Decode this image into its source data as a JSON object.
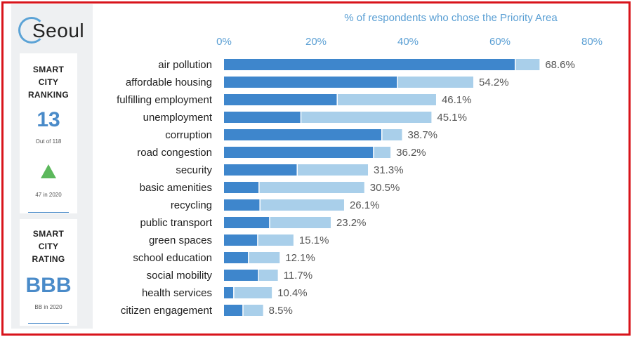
{
  "sidebar": {
    "logo_text": "Seoul",
    "ranking_label": "SMART CITY RANKING",
    "ranking_value": "13",
    "ranking_of": "Out of 118",
    "ranking_prev": "47 in 2020",
    "rating_label": "SMART CITY RATING",
    "rating_value": "BBB",
    "rating_prev": "BB in 2020"
  },
  "colors": {
    "dark_bar": "#3e86cc",
    "light_bar": "#a9cfea",
    "axis_text": "#5a9fd4",
    "label_text": "#222222",
    "value_text": "#555555",
    "frame": "#d8141b"
  },
  "chart_data": {
    "type": "bar",
    "orientation": "horizontal",
    "stacked": true,
    "xlabel": "% of respondents who chose the Priority Area",
    "xlim": [
      0,
      80
    ],
    "xticks": [
      "0%",
      "20%",
      "40%",
      "60%",
      "80%"
    ],
    "categories": [
      "air pollution",
      "affordable housing",
      "fulfilling employment",
      "unemployment",
      "corruption",
      "road congestion",
      "security",
      "basic amenities",
      "recycling",
      "public transport",
      "green spaces",
      "school education",
      "social mobility",
      "health services",
      "citizen engagement"
    ],
    "series": [
      {
        "values": [
          63.2,
          37.6,
          24.5,
          16.6,
          34.2,
          32.4,
          15.8,
          7.5,
          7.7,
          9.8,
          7.2,
          5.2,
          7.4,
          2.0,
          4.0
        ]
      },
      {
        "values": [
          5.4,
          16.6,
          21.6,
          28.5,
          4.5,
          3.8,
          15.5,
          23.0,
          18.4,
          13.4,
          7.9,
          6.9,
          4.3,
          8.4,
          4.5
        ]
      }
    ],
    "total_labels": [
      "68.6%",
      "54.2%",
      "46.1%",
      "45.1%",
      "38.7%",
      "36.2%",
      "31.3%",
      "30.5%",
      "26.1%",
      "23.2%",
      "15.1%",
      "12.1%",
      "11.7%",
      "10.4%",
      "8.5%"
    ],
    "totals": [
      68.6,
      54.2,
      46.1,
      45.1,
      38.7,
      36.2,
      31.3,
      30.5,
      26.1,
      23.2,
      15.1,
      12.1,
      11.7,
      10.4,
      8.5
    ]
  }
}
